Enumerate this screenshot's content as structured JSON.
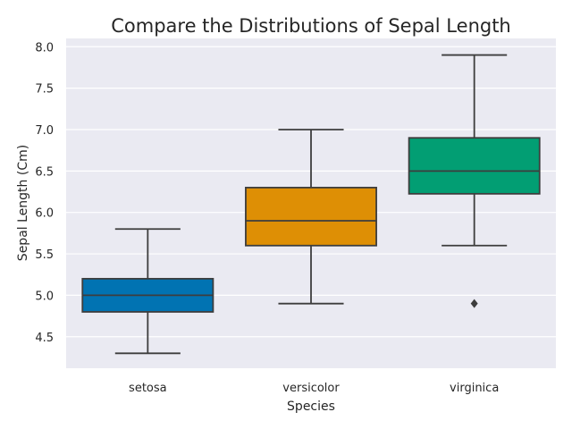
{
  "chart_data": {
    "type": "box",
    "title": "Compare the Distributions of Sepal Length",
    "xlabel": "Species",
    "ylabel": "Sepal Length (Cm)",
    "ylim": [
      4.12,
      8.1
    ],
    "yticks": [
      "4.5",
      "5.0",
      "5.5",
      "6.0",
      "6.5",
      "7.0",
      "7.5",
      "8.0"
    ],
    "grid": true,
    "categories": [
      "setosa",
      "versicolor",
      "virginica"
    ],
    "boxes": [
      {
        "category": "setosa",
        "whisker_low": 4.3,
        "q1": 4.8,
        "median": 5.0,
        "q3": 5.2,
        "whisker_high": 5.8,
        "outliers": [],
        "color": "#0173b2"
      },
      {
        "category": "versicolor",
        "whisker_low": 4.9,
        "q1": 5.6,
        "median": 5.9,
        "q3": 6.3,
        "whisker_high": 7.0,
        "outliers": [],
        "color": "#de8f05"
      },
      {
        "category": "virginica",
        "whisker_low": 5.6,
        "q1": 6.225,
        "median": 6.5,
        "q3": 6.9,
        "whisker_high": 7.9,
        "outliers": [
          4.9
        ],
        "color": "#029e73"
      }
    ],
    "colors": {
      "background": "#eaeaf2",
      "grid": "#ffffff",
      "edge": "#3d3d3d"
    }
  }
}
